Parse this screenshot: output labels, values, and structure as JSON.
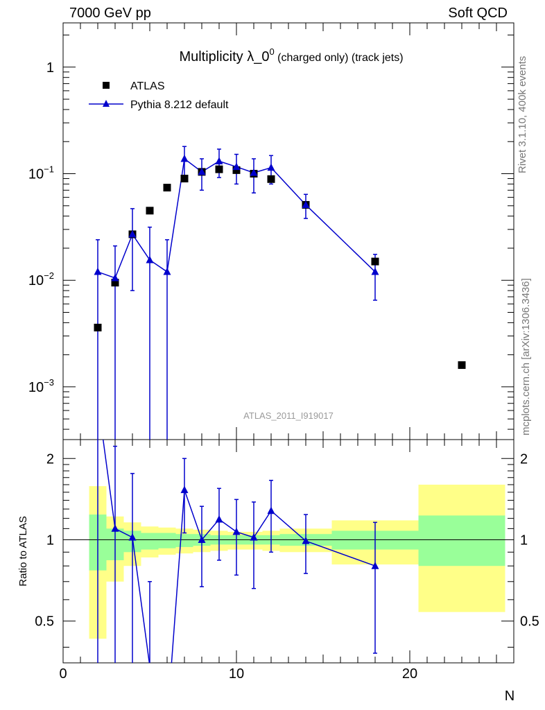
{
  "header": {
    "left": "7000 GeV pp",
    "right": "Soft QCD",
    "side_top": "Rivet 3.1.10,  400k events",
    "side_bottom": "mcplots.cern.ch [arXiv:1306.3436]"
  },
  "chart_data": [
    {
      "panel": "main",
      "type": "scatter",
      "title_main": "Multiplicity λ_0",
      "title_sup": "0",
      "title_suffix": " (charged only) (track jets)",
      "watermark": "ATLAS_2011_I919017",
      "xlabel": "N",
      "ylabel": "",
      "xlim": [
        0,
        26
      ],
      "ylim": [
        0.00032,
        2.6
      ],
      "yscale": "log",
      "yticks": [
        {
          "value": 1,
          "base": "1",
          "exp": ""
        },
        {
          "value": 0.1,
          "base": "10",
          "exp": "−1"
        },
        {
          "value": 0.01,
          "base": "10",
          "exp": "−2"
        },
        {
          "value": 0.001,
          "base": "10",
          "exp": "−3"
        }
      ],
      "legend": [
        "ATLAS",
        "Pythia 8.212 default"
      ],
      "legend_position": "top-left",
      "series": [
        {
          "name": "ATLAS",
          "marker": "square",
          "color": "#000000",
          "points": [
            {
              "x": 2,
              "y": 0.0036
            },
            {
              "x": 3,
              "y": 0.0095
            },
            {
              "x": 4,
              "y": 0.027
            },
            {
              "x": 5,
              "y": 0.045
            },
            {
              "x": 6,
              "y": 0.074
            },
            {
              "x": 7,
              "y": 0.09
            },
            {
              "x": 8,
              "y": 0.104
            },
            {
              "x": 9,
              "y": 0.11
            },
            {
              "x": 10,
              "y": 0.108
            },
            {
              "x": 11,
              "y": 0.1
            },
            {
              "x": 12,
              "y": 0.089
            },
            {
              "x": 14,
              "y": 0.051
            },
            {
              "x": 18,
              "y": 0.015
            },
            {
              "x": 23,
              "y": 0.0016
            }
          ]
        },
        {
          "name": "Pythia 8.212 default",
          "marker": "triangle",
          "color": "#0000cc",
          "points": [
            {
              "x": 2,
              "y": 0.012,
              "lo": 0.0001,
              "hi": 0.024
            },
            {
              "x": 3,
              "y": 0.0105,
              "lo": 0.0001,
              "hi": 0.021
            },
            {
              "x": 4,
              "y": 0.027,
              "lo": 0.008,
              "hi": 0.047
            },
            {
              "x": 5,
              "y": 0.0155,
              "lo": 0.0001,
              "hi": 0.0315
            },
            {
              "x": 6,
              "y": 0.012,
              "lo": 0.0001,
              "hi": 0.024
            },
            {
              "x": 7,
              "y": 0.138,
              "lo": 0.095,
              "hi": 0.18
            },
            {
              "x": 8,
              "y": 0.104,
              "lo": 0.07,
              "hi": 0.138
            },
            {
              "x": 9,
              "y": 0.131,
              "lo": 0.092,
              "hi": 0.17
            },
            {
              "x": 10,
              "y": 0.116,
              "lo": 0.08,
              "hi": 0.152
            },
            {
              "x": 11,
              "y": 0.102,
              "lo": 0.066,
              "hi": 0.138
            },
            {
              "x": 12,
              "y": 0.114,
              "lo": 0.08,
              "hi": 0.148
            },
            {
              "x": 14,
              "y": 0.051,
              "lo": 0.038,
              "hi": 0.064
            },
            {
              "x": 18,
              "y": 0.012,
              "lo": 0.0065,
              "hi": 0.0175
            }
          ]
        }
      ]
    },
    {
      "panel": "ratio",
      "type": "line",
      "ylabel": "Ratio to ATLAS",
      "xlabel": "N",
      "xlim": [
        0,
        26
      ],
      "ylim": [
        0.35,
        2.35
      ],
      "yscale": "log",
      "yticks": [
        {
          "value": 2,
          "label": "2"
        },
        {
          "value": 1,
          "label": "1"
        },
        {
          "value": 0.5,
          "label": "0.5"
        }
      ],
      "xticks": [
        {
          "value": 0,
          "label": "0"
        },
        {
          "value": 10,
          "label": "10"
        },
        {
          "value": 20,
          "label": "20"
        }
      ],
      "reference_line": 1,
      "bands": [
        {
          "x0": 1.5,
          "x1": 2.5,
          "green": [
            0.77,
            1.24
          ],
          "yellow": [
            0.43,
            1.58
          ]
        },
        {
          "x0": 2.5,
          "x1": 3.5,
          "green": [
            0.84,
            1.1
          ],
          "yellow": [
            0.7,
            1.22
          ]
        },
        {
          "x0": 3.5,
          "x1": 4.5,
          "green": [
            0.9,
            1.08
          ],
          "yellow": [
            0.8,
            1.16
          ]
        },
        {
          "x0": 4.5,
          "x1": 5.5,
          "green": [
            0.92,
            1.06
          ],
          "yellow": [
            0.86,
            1.12
          ]
        },
        {
          "x0": 5.5,
          "x1": 6.5,
          "green": [
            0.93,
            1.06
          ],
          "yellow": [
            0.88,
            1.11
          ]
        },
        {
          "x0": 6.5,
          "x1": 7.5,
          "green": [
            0.94,
            1.05
          ],
          "yellow": [
            0.89,
            1.1
          ]
        },
        {
          "x0": 7.5,
          "x1": 8.5,
          "green": [
            0.95,
            1.05
          ],
          "yellow": [
            0.9,
            1.09
          ]
        },
        {
          "x0": 8.5,
          "x1": 9.5,
          "green": [
            0.96,
            1.04
          ],
          "yellow": [
            0.91,
            1.08
          ]
        },
        {
          "x0": 9.5,
          "x1": 10.5,
          "green": [
            0.96,
            1.04
          ],
          "yellow": [
            0.92,
            1.07
          ]
        },
        {
          "x0": 10.5,
          "x1": 11.5,
          "green": [
            0.96,
            1.04
          ],
          "yellow": [
            0.92,
            1.07
          ]
        },
        {
          "x0": 11.5,
          "x1": 12.5,
          "green": [
            0.96,
            1.04
          ],
          "yellow": [
            0.91,
            1.08
          ]
        },
        {
          "x0": 12.5,
          "x1": 15.5,
          "green": [
            0.95,
            1.05
          ],
          "yellow": [
            0.9,
            1.1
          ]
        },
        {
          "x0": 15.5,
          "x1": 20.5,
          "green": [
            0.92,
            1.08
          ],
          "yellow": [
            0.81,
            1.18
          ]
        },
        {
          "x0": 20.5,
          "x1": 25.5,
          "green": [
            0.8,
            1.23
          ],
          "yellow": [
            0.54,
            1.6
          ]
        }
      ],
      "series": [
        {
          "name": "Pythia 8.212 default",
          "color": "#0000cc",
          "points": [
            {
              "x": 2,
              "y": 3.3,
              "lo": 0.0,
              "hi": 6.6
            },
            {
              "x": 3,
              "y": 1.1,
              "lo": 0.0,
              "hi": 2.22
            },
            {
              "x": 4,
              "y": 1.02,
              "lo": 0.3,
              "hi": 1.76
            },
            {
              "x": 5,
              "y": 0.34,
              "lo": 0.0,
              "hi": 0.7
            },
            {
              "x": 6,
              "y": 0.16,
              "lo": 0.0,
              "hi": 0.32
            },
            {
              "x": 7,
              "y": 1.53,
              "lo": 1.06,
              "hi": 2.0
            },
            {
              "x": 8,
              "y": 1.0,
              "lo": 0.67,
              "hi": 1.33
            },
            {
              "x": 9,
              "y": 1.19,
              "lo": 0.84,
              "hi": 1.55
            },
            {
              "x": 10,
              "y": 1.07,
              "lo": 0.74,
              "hi": 1.41
            },
            {
              "x": 11,
              "y": 1.02,
              "lo": 0.66,
              "hi": 1.38
            },
            {
              "x": 12,
              "y": 1.28,
              "lo": 0.9,
              "hi": 1.66
            },
            {
              "x": 14,
              "y": 0.99,
              "lo": 0.75,
              "hi": 1.24
            },
            {
              "x": 18,
              "y": 0.8,
              "lo": 0.38,
              "hi": 1.16
            }
          ]
        }
      ]
    }
  ]
}
